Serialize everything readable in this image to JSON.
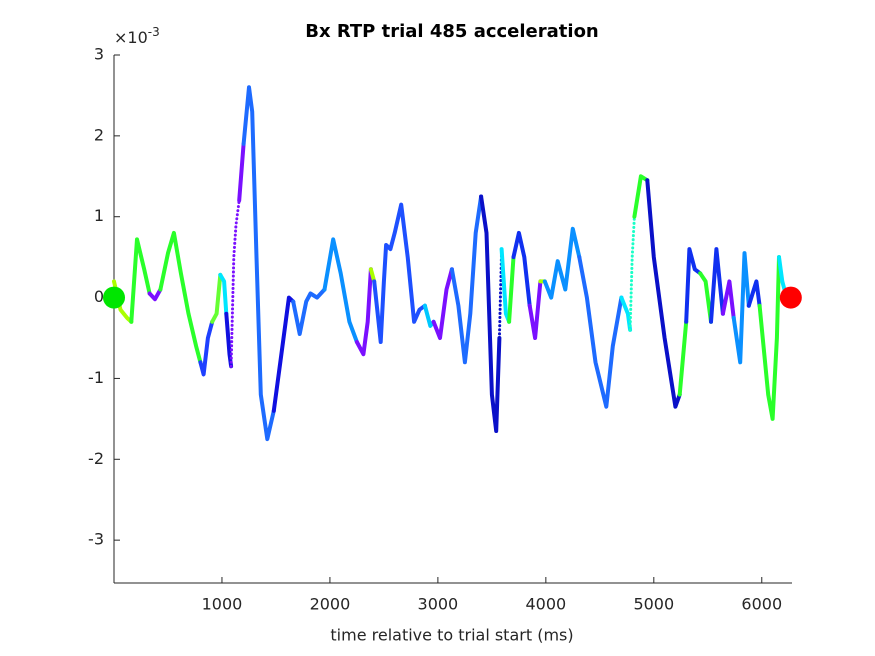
{
  "chart_data": {
    "type": "line",
    "title": "Bx  RTP trial 485 acceleration",
    "xlabel": "time relative to trial start (ms)",
    "y_multiplier": {
      "base": "×10",
      "exponent": "-3"
    },
    "xlim": [
      0,
      6280
    ],
    "ylim": [
      -3.53,
      3
    ],
    "xticks": [
      1000,
      2000,
      3000,
      4000,
      5000,
      6000
    ],
    "yticks": [
      -3,
      -2,
      -1,
      0,
      1,
      2,
      3
    ],
    "grid": false,
    "segments": [
      {
        "color": "#aaff00",
        "x": [
          0,
          60,
          120,
          160
        ],
        "values": [
          0.2,
          -0.15,
          -0.25,
          -0.3
        ]
      },
      {
        "color": "#2aff2a",
        "x": [
          160,
          213,
          280,
          330
        ],
        "values": [
          -0.3,
          0.72,
          0.35,
          0.05
        ]
      },
      {
        "color": "#7a10ff",
        "x": [
          330,
          380,
          430
        ],
        "values": [
          0.05,
          -0.02,
          0.1
        ]
      },
      {
        "color": "#2aff2a",
        "x": [
          430,
          500,
          555,
          620,
          690,
          760,
          800
        ],
        "values": [
          0.1,
          0.55,
          0.8,
          0.3,
          -0.2,
          -0.6,
          -0.8
        ]
      },
      {
        "color": "#1e40ff",
        "x": [
          800,
          830,
          870,
          910
        ],
        "values": [
          -0.8,
          -0.95,
          -0.5,
          -0.3
        ]
      },
      {
        "color": "#66ff33",
        "x": [
          910,
          950,
          985
        ],
        "values": [
          -0.3,
          -0.2,
          0.28
        ]
      },
      {
        "color": "#00e6ff",
        "x": [
          985,
          1020,
          1040
        ],
        "values": [
          0.28,
          0.2,
          -0.2
        ]
      },
      {
        "color": "#1010e0",
        "x": [
          1040,
          1070,
          1085
        ],
        "values": [
          -0.2,
          -0.7,
          -0.85
        ]
      },
      {
        "color": "#7a10ff",
        "dotted": true,
        "x": [
          1085,
          1110,
          1130,
          1160
        ],
        "values": [
          -0.85,
          0.5,
          0.9,
          1.2
        ]
      },
      {
        "color": "#7a10ff",
        "x": [
          1160,
          1200
        ],
        "values": [
          1.2,
          1.9
        ]
      },
      {
        "color": "#1e6bff",
        "x": [
          1200,
          1250,
          1280,
          1320,
          1360,
          1420,
          1480
        ],
        "values": [
          1.9,
          2.6,
          2.3,
          0.5,
          -1.2,
          -1.75,
          -1.4
        ]
      },
      {
        "color": "#1010e0",
        "x": [
          1480,
          1540,
          1620,
          1660
        ],
        "values": [
          -1.4,
          -0.8,
          0,
          -0.05
        ]
      },
      {
        "color": "#1e6bff",
        "x": [
          1660,
          1720,
          1780,
          1820,
          1880,
          1950
        ],
        "values": [
          -0.05,
          -0.45,
          -0.05,
          0.05,
          0,
          0.1
        ]
      },
      {
        "color": "#0a90ff",
        "x": [
          1950,
          2030,
          2100,
          2180,
          2250
        ],
        "values": [
          0.1,
          0.72,
          0.3,
          -0.3,
          -0.55
        ]
      },
      {
        "color": "#7a10ff",
        "x": [
          2250,
          2310,
          2350,
          2380
        ],
        "values": [
          -0.55,
          -0.7,
          -0.3,
          0.35
        ]
      },
      {
        "color": "#aaff00",
        "x": [
          2380,
          2410
        ],
        "values": [
          0.35,
          0.2
        ]
      },
      {
        "color": "#1e50ff",
        "x": [
          2410,
          2470,
          2500,
          2520,
          2560,
          2600,
          2660,
          2720,
          2780,
          2830,
          2880
        ],
        "values": [
          0.2,
          -0.55,
          0.2,
          0.65,
          0.6,
          0.8,
          1.15,
          0.5,
          -0.3,
          -0.15,
          -0.1
        ]
      },
      {
        "color": "#00c8ff",
        "x": [
          2880,
          2930,
          2960
        ],
        "values": [
          -0.1,
          -0.35,
          -0.3
        ]
      },
      {
        "color": "#7a10ff",
        "x": [
          2960,
          3020,
          3080,
          3130
        ],
        "values": [
          -0.3,
          -0.5,
          0.1,
          0.35
        ]
      },
      {
        "color": "#1e6bff",
        "x": [
          3130,
          3190,
          3250,
          3300,
          3350,
          3400
        ],
        "values": [
          0.35,
          -0.1,
          -0.8,
          -0.2,
          0.8,
          1.25
        ]
      },
      {
        "color": "#0a10c8",
        "x": [
          3400,
          3450,
          3500,
          3540,
          3570
        ],
        "values": [
          1.25,
          0.8,
          -1.2,
          -1.65,
          -0.5
        ]
      },
      {
        "color": "#0a10c8",
        "dotted": true,
        "x": [
          3570,
          3590
        ],
        "values": [
          -0.5,
          0.6
        ]
      },
      {
        "color": "#00e6ff",
        "x": [
          3590,
          3630,
          3660
        ],
        "values": [
          0.6,
          -0.2,
          -0.3
        ]
      },
      {
        "color": "#2aff2a",
        "x": [
          3660,
          3700
        ],
        "values": [
          -0.3,
          0.5
        ]
      },
      {
        "color": "#1030f0",
        "x": [
          3700,
          3750,
          3800,
          3850
        ],
        "values": [
          0.5,
          0.8,
          0.5,
          -0.1
        ]
      },
      {
        "color": "#7a10ff",
        "x": [
          3850,
          3900,
          3950
        ],
        "values": [
          -0.1,
          -0.5,
          0.2
        ]
      },
      {
        "color": "#aaff00",
        "x": [
          3950,
          3990
        ],
        "values": [
          0.2,
          0.2
        ]
      },
      {
        "color": "#0a90ff",
        "x": [
          3990,
          4050,
          4110,
          4180,
          4250,
          4310
        ],
        "values": [
          0.2,
          0,
          0.45,
          0.1,
          0.85,
          0.5
        ]
      },
      {
        "color": "#1e6bff",
        "x": [
          4310,
          4380,
          4460,
          4560,
          4620,
          4700
        ],
        "values": [
          0.5,
          0,
          -0.8,
          -1.35,
          -0.6,
          0
        ]
      },
      {
        "color": "#00e6ff",
        "x": [
          4700,
          4760,
          4780
        ],
        "values": [
          0,
          -0.2,
          -0.4
        ]
      },
      {
        "color": "#1affc8",
        "dotted": true,
        "x": [
          4780,
          4800,
          4820
        ],
        "values": [
          -0.4,
          0.5,
          1.0
        ]
      },
      {
        "color": "#2aff2a",
        "x": [
          4820,
          4880,
          4940
        ],
        "values": [
          1.0,
          1.5,
          1.45
        ]
      },
      {
        "color": "#0a10c8",
        "x": [
          4940,
          5000,
          5100,
          5200,
          5240
        ],
        "values": [
          1.45,
          0.5,
          -0.5,
          -1.35,
          -1.2
        ]
      },
      {
        "color": "#2aff2a",
        "x": [
          5240,
          5300
        ],
        "values": [
          -1.2,
          -0.3
        ]
      },
      {
        "color": "#1030f0",
        "x": [
          5300,
          5330,
          5380,
          5430
        ],
        "values": [
          -0.3,
          0.6,
          0.35,
          0.3
        ]
      },
      {
        "color": "#2aff2a",
        "x": [
          5430,
          5480,
          5530
        ],
        "values": [
          0.3,
          0.2,
          -0.3
        ]
      },
      {
        "color": "#1030f0",
        "x": [
          5530,
          5580,
          5640
        ],
        "values": [
          -0.3,
          0.6,
          -0.2
        ]
      },
      {
        "color": "#7a10ff",
        "x": [
          5640,
          5700,
          5740
        ],
        "values": [
          -0.2,
          0.2,
          -0.25
        ]
      },
      {
        "color": "#0a90ff",
        "x": [
          5740,
          5800,
          5840,
          5880
        ],
        "values": [
          -0.25,
          -0.8,
          0.55,
          -0.1
        ]
      },
      {
        "color": "#1030f0",
        "x": [
          5880,
          5950,
          5980
        ],
        "values": [
          -0.1,
          0.2,
          -0.1
        ]
      },
      {
        "color": "#2aff2a",
        "x": [
          5980,
          6060,
          6100,
          6140,
          6160
        ],
        "values": [
          -0.1,
          -1.2,
          -1.5,
          -0.5,
          0.5
        ]
      },
      {
        "color": "#00e6ff",
        "x": [
          6160,
          6190,
          6230
        ],
        "values": [
          0.5,
          0.2,
          0
        ]
      }
    ],
    "start_marker": {
      "x": 0,
      "y": 0,
      "color": "#00e600"
    },
    "end_marker": {
      "x": 6269,
      "y": 0,
      "color": "#ff0000"
    }
  }
}
